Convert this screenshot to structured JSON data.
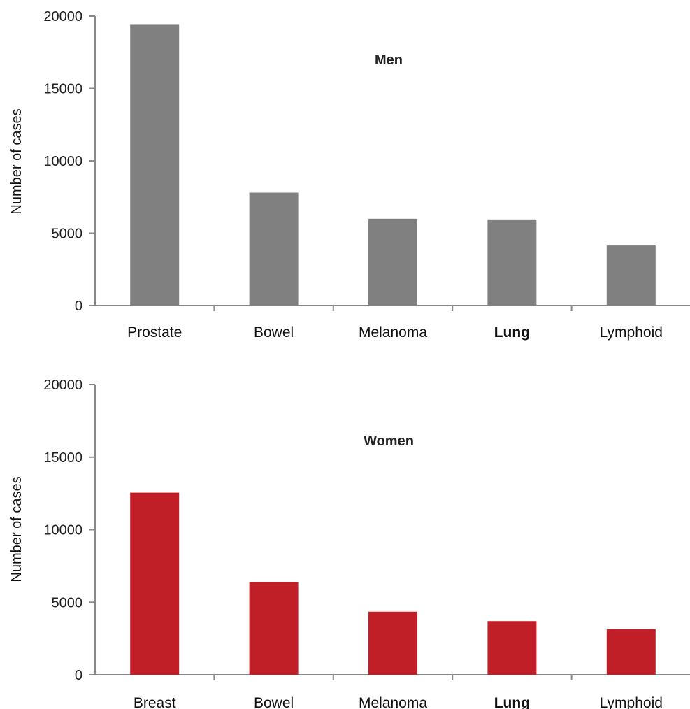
{
  "chart_data": [
    {
      "type": "bar",
      "title": "Men",
      "ylabel": "Number of cases",
      "xlabel": "",
      "categories": [
        "Prostate",
        "Bowel",
        "Melanoma",
        "Lung",
        "Lymphoid"
      ],
      "bold_categories": [
        "Lung"
      ],
      "values": [
        19400,
        7800,
        6000,
        5950,
        4150
      ],
      "ylim": [
        0,
        20000
      ],
      "yticks": [
        0,
        5000,
        10000,
        15000,
        20000
      ],
      "bar_color": "#808080",
      "grid": false,
      "legend": "none"
    },
    {
      "type": "bar",
      "title": "Women",
      "ylabel": "Number of cases",
      "xlabel": "",
      "categories": [
        "Breast",
        "Bowel",
        "Melanoma",
        "Lung",
        "Lymphoid"
      ],
      "bold_categories": [
        "Lung"
      ],
      "values": [
        12550,
        6400,
        4350,
        3700,
        3150
      ],
      "ylim": [
        0,
        20000
      ],
      "yticks": [
        0,
        5000,
        10000,
        15000,
        20000
      ],
      "bar_color": "#c01f28",
      "grid": false,
      "legend": "none"
    }
  ]
}
